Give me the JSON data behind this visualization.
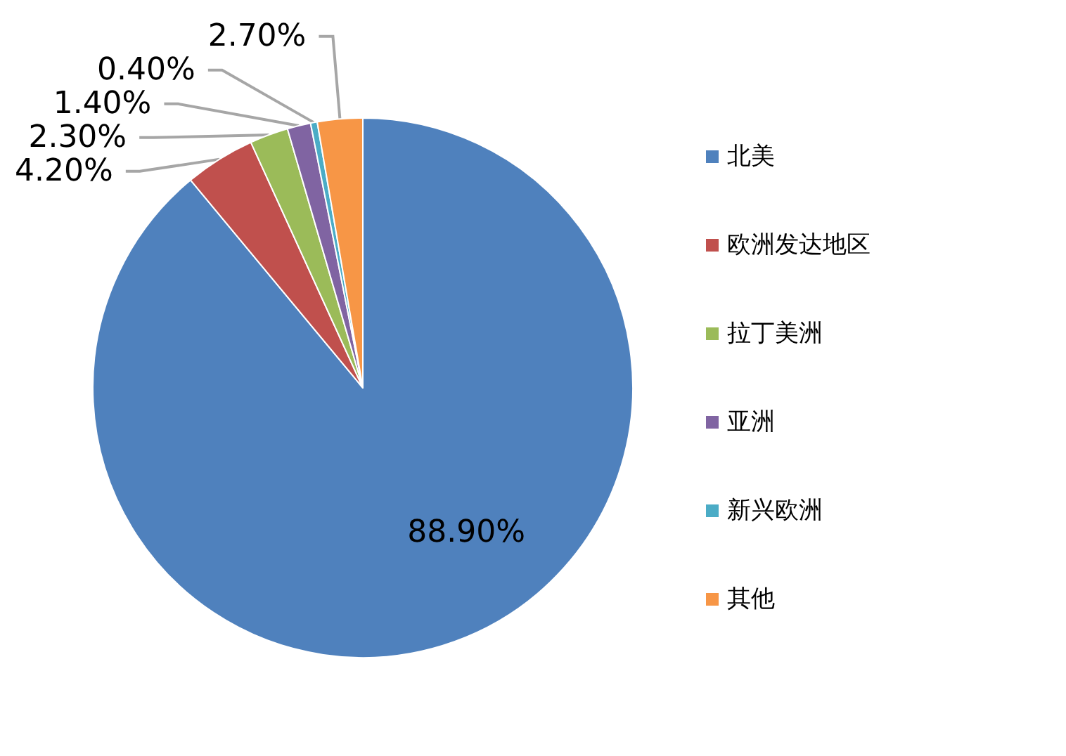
{
  "chart_data": {
    "type": "pie",
    "categories": [
      "北美",
      "欧洲发达地区",
      "拉丁美洲",
      "亚洲",
      "新兴欧洲",
      "其他"
    ],
    "values": [
      88.9,
      4.2,
      2.3,
      1.4,
      0.4,
      2.7
    ],
    "colors": [
      "#4f81bd",
      "#c0504d",
      "#9bbb59",
      "#8064a2",
      "#4bacc6",
      "#f79646"
    ],
    "value_labels": [
      "88.90%",
      "4.20%",
      "2.30%",
      "1.40%",
      "0.40%",
      "2.70%"
    ],
    "legend": "right"
  }
}
